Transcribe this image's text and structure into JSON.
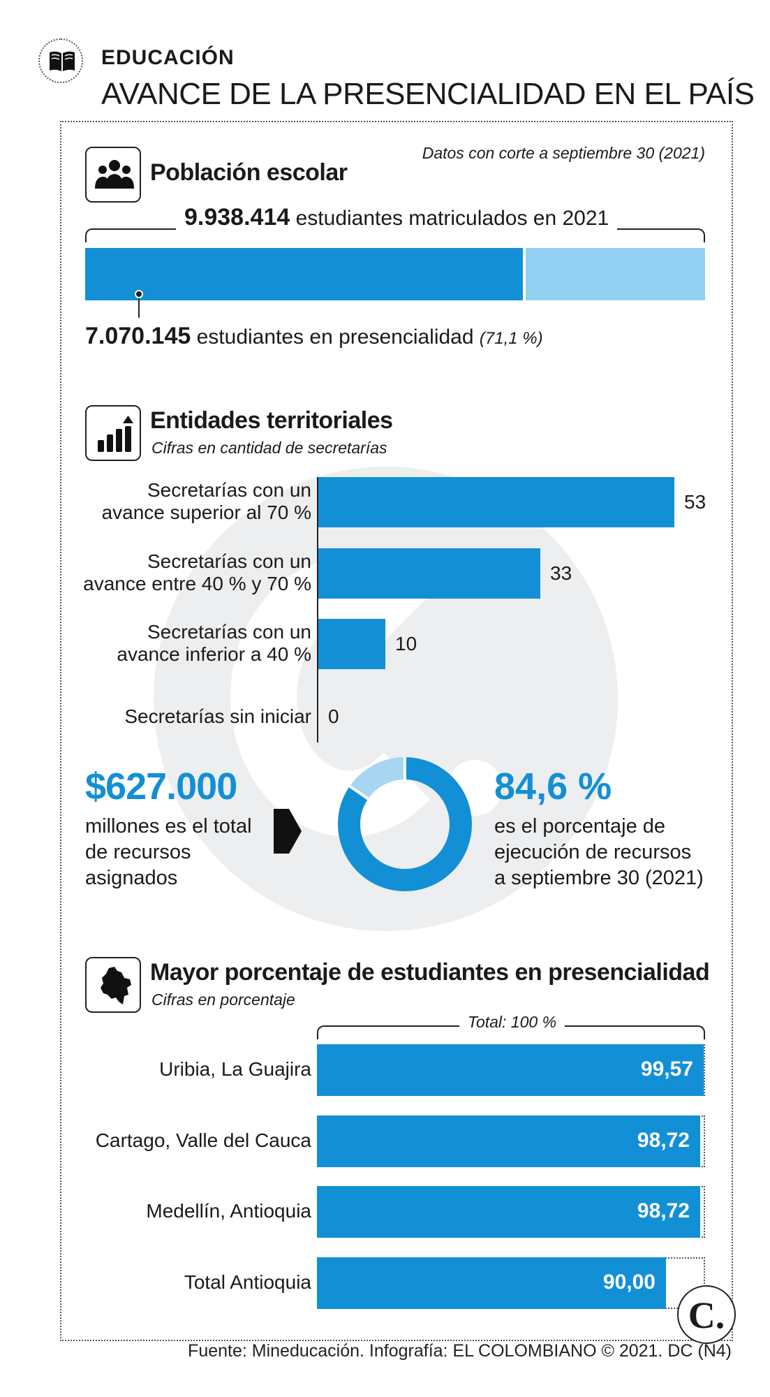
{
  "header": {
    "section": "EDUCACIÓN",
    "title": "AVANCE DE LA PRESENCIALIDAD EN EL PAÍS",
    "icon": "book-icon"
  },
  "poblacion": {
    "title": "Población escolar",
    "icon": "people-icon",
    "note": "Datos con corte a septiembre 30 (2021)",
    "total_value": "9.938.414",
    "total_text": "estudiantes matriculados en 2021",
    "presencial_value": "7.070.145",
    "presencial_text": "estudiantes en presencialidad",
    "presencial_pct_text": "(71,1 %)",
    "presencial_fraction": 0.711,
    "colors": {
      "filled": "#138fd6",
      "remaining": "#93cff0"
    }
  },
  "entidades": {
    "title": "Entidades territoriales",
    "subtitle": "Cifras en cantidad de secretarías",
    "icon": "bar-chart-icon"
  },
  "recursos": {
    "amount": "$627.000",
    "amount_desc": "millones es el total de recursos asignados",
    "percent": "84,6 %",
    "percent_value": 84.6,
    "percent_desc": [
      "es el porcentaje de",
      "ejecución de recursos",
      "a septiembre 30 (2021)"
    ],
    "icon": "arrow-right-icon"
  },
  "mayor": {
    "title": "Mayor porcentaje de estudiantes en presencialidad",
    "subtitle": "Cifras en porcentaje",
    "icon": "colombia-map-icon",
    "total_label": "Total: 100 %"
  },
  "chart_data": [
    {
      "type": "bar",
      "orientation": "horizontal",
      "categories": [
        "Secretarías con un avance superior al 70 %",
        "Secretarías con un avance entre 40 % y 70 %",
        "Secretarías con un avance inferior a 40 %",
        "Secretarías sin iniciar"
      ],
      "values": [
        53,
        33,
        10,
        0
      ],
      "value_labels": [
        "53",
        "33",
        "10",
        "0"
      ],
      "xlim": [
        0,
        53
      ],
      "color": "#138fd6",
      "grid": false
    },
    {
      "type": "bar",
      "orientation": "horizontal",
      "categories": [
        "Uribia, La Guajira",
        "Cartago, Valle del Cauca",
        "Medellín, Antioquia",
        "Total Antioquia"
      ],
      "values": [
        99.57,
        98.72,
        98.72,
        90.0
      ],
      "value_labels": [
        "99,57",
        "98,72",
        "98,72",
        "90,00"
      ],
      "xlim": [
        0,
        100
      ],
      "color": "#138fd6",
      "grid": false
    },
    {
      "type": "pie",
      "style": "donut",
      "categories": [
        "ejecutado",
        "restante"
      ],
      "values": [
        84.6,
        15.4
      ],
      "colors": [
        "#138fd6",
        "#a8d6f2"
      ]
    }
  ],
  "footer": {
    "source": "Fuente: Mineducación. Infografía: EL COLOMBIANO © 2021. DC (N4)",
    "logo_text": "C."
  }
}
